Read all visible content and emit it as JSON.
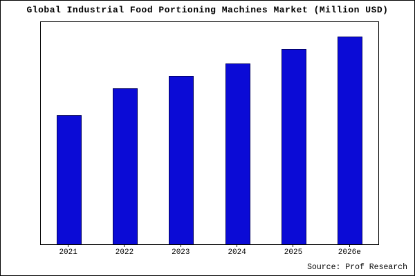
{
  "chart_data": {
    "type": "bar",
    "title": "Global Industrial Food Portioning Machines Market (Million USD)",
    "categories": [
      "2021",
      "2022",
      "2023",
      "2024",
      "2025",
      "2026e"
    ],
    "values": [
      62,
      75,
      81,
      87,
      94,
      100
    ],
    "ylim": [
      0,
      107
    ],
    "xlabel": "",
    "ylabel": "",
    "grid": false,
    "y_axis_tick_labels_visible": false,
    "legend_position": "none",
    "bar_color": "#0b0bd6",
    "bar_edge_color": "#000060",
    "source": "Source: Prof Research"
  }
}
